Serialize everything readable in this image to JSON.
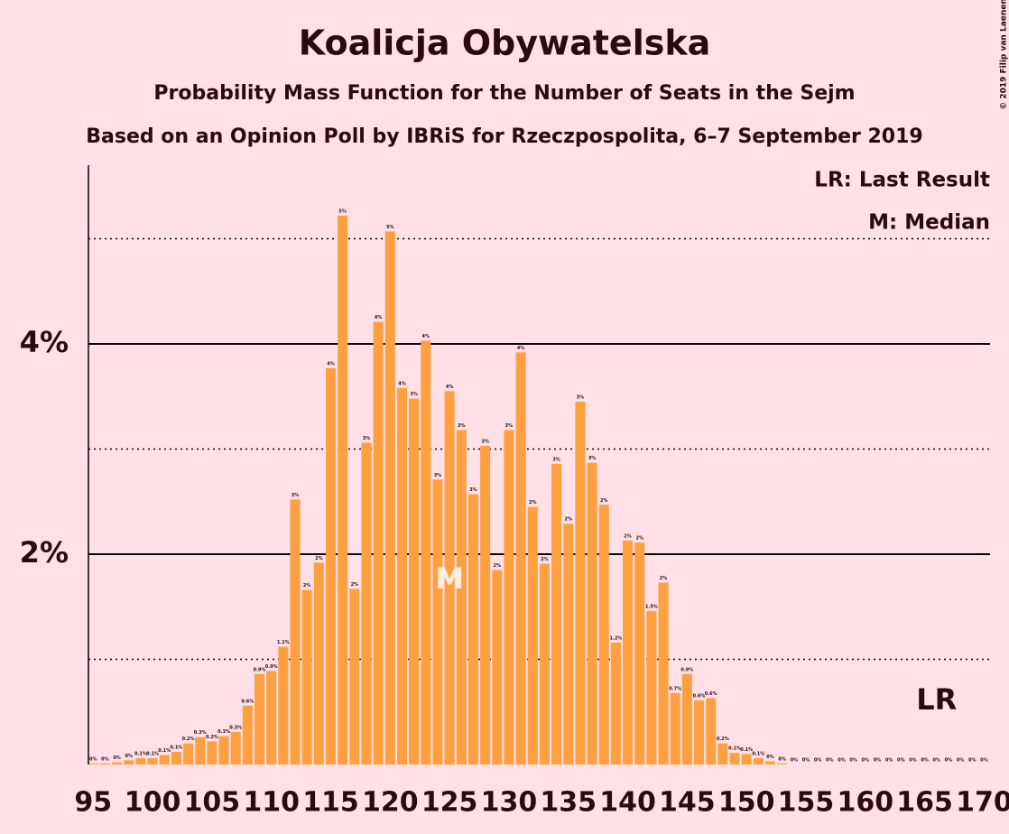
{
  "chart_data": {
    "type": "bar",
    "title": "Koalicja Obywatelska",
    "subtitle": "Probability Mass Function for the Number of Seats in the Sejm",
    "subtitle2": "Based on an Opinion Poll by IBRiS for Rzeczpospolita, 6–7 September 2019",
    "copyright": "© 2019 Filip van Laenen",
    "legend": [
      "LR: Last Result",
      "M: Median"
    ],
    "color": "#ffa040",
    "x": [
      95,
      96,
      97,
      98,
      99,
      100,
      101,
      102,
      103,
      104,
      105,
      106,
      107,
      108,
      109,
      110,
      111,
      112,
      113,
      114,
      115,
      116,
      117,
      118,
      119,
      120,
      121,
      122,
      123,
      124,
      125,
      126,
      127,
      128,
      129,
      130,
      131,
      132,
      133,
      134,
      135,
      136,
      137,
      138,
      139,
      140,
      141,
      142,
      143,
      144,
      145,
      146,
      147,
      148,
      149,
      150,
      151,
      152,
      153,
      154,
      155,
      156,
      157,
      158,
      159,
      160,
      161,
      162,
      163,
      164,
      165,
      166,
      167,
      168,
      169,
      170
    ],
    "values": [
      0.01,
      0.01,
      0.02,
      0.04,
      0.06,
      0.06,
      0.09,
      0.12,
      0.2,
      0.26,
      0.22,
      0.27,
      0.31,
      0.56,
      0.86,
      0.89,
      1.12,
      2.52,
      1.66,
      1.92,
      3.77,
      5.22,
      1.67,
      3.06,
      4.21,
      5.07,
      3.58,
      3.48,
      4.03,
      2.71,
      3.55,
      3.18,
      2.57,
      3.03,
      1.85,
      3.18,
      3.92,
      2.45,
      1.91,
      2.86,
      2.29,
      3.45,
      2.87,
      2.47,
      1.16,
      2.13,
      2.11,
      1.46,
      1.73,
      0.68,
      0.86,
      0.61,
      0.63,
      0.2,
      0.11,
      0.1,
      0.06,
      0.03,
      0.01,
      0,
      0,
      0,
      0,
      0,
      0,
      0,
      0,
      0,
      0,
      0,
      0,
      0,
      0,
      0,
      0,
      0
    ],
    "value_labels": [
      "0%",
      "0%",
      "0%",
      "0%",
      "0.1%",
      "0.1%",
      "0.1%",
      "0.1%",
      "0.2%",
      "0.3%",
      "0.2%",
      "0.3%",
      "0.3%",
      "0.6%",
      "0.9%",
      "0.9%",
      "1.1%",
      "3%",
      "2%",
      "2%",
      "4%",
      "5%",
      "2%",
      "3%",
      "4%",
      "5%",
      "4%",
      "3%",
      "4%",
      "3%",
      "4%",
      "3%",
      "3%",
      "3%",
      "2%",
      "3%",
      "4%",
      "2%",
      "2%",
      "3%",
      "2%",
      "3%",
      "3%",
      "2%",
      "1.2%",
      "2%",
      "2%",
      "1.5%",
      "2%",
      "0.7%",
      "0.9%",
      "0.6%",
      "0.6%",
      "0.2%",
      "0.1%",
      "0.1%",
      "0.1%",
      "0%",
      "0%",
      "0%",
      "0%",
      "0%",
      "0%",
      "0%",
      "0%",
      "0%",
      "0%",
      "0%",
      "0%",
      "0%",
      "0%",
      "0%",
      "0%",
      "0%",
      "0%",
      "0%"
    ],
    "median": {
      "x": 125,
      "label": "M"
    },
    "last_result": {
      "x": 166,
      "label": "LR"
    },
    "xlim": [
      94.6,
      170.5
    ],
    "xticks": [
      95,
      100,
      105,
      110,
      115,
      120,
      125,
      130,
      135,
      140,
      145,
      150,
      155,
      160,
      165,
      170
    ],
    "ylim": [
      0,
      5.7
    ],
    "yticks": [
      {
        "value": 2,
        "label": "2%"
      },
      {
        "value": 4,
        "label": "4%"
      }
    ],
    "minor_yticks": [
      1,
      3,
      5
    ],
    "grid": true
  }
}
